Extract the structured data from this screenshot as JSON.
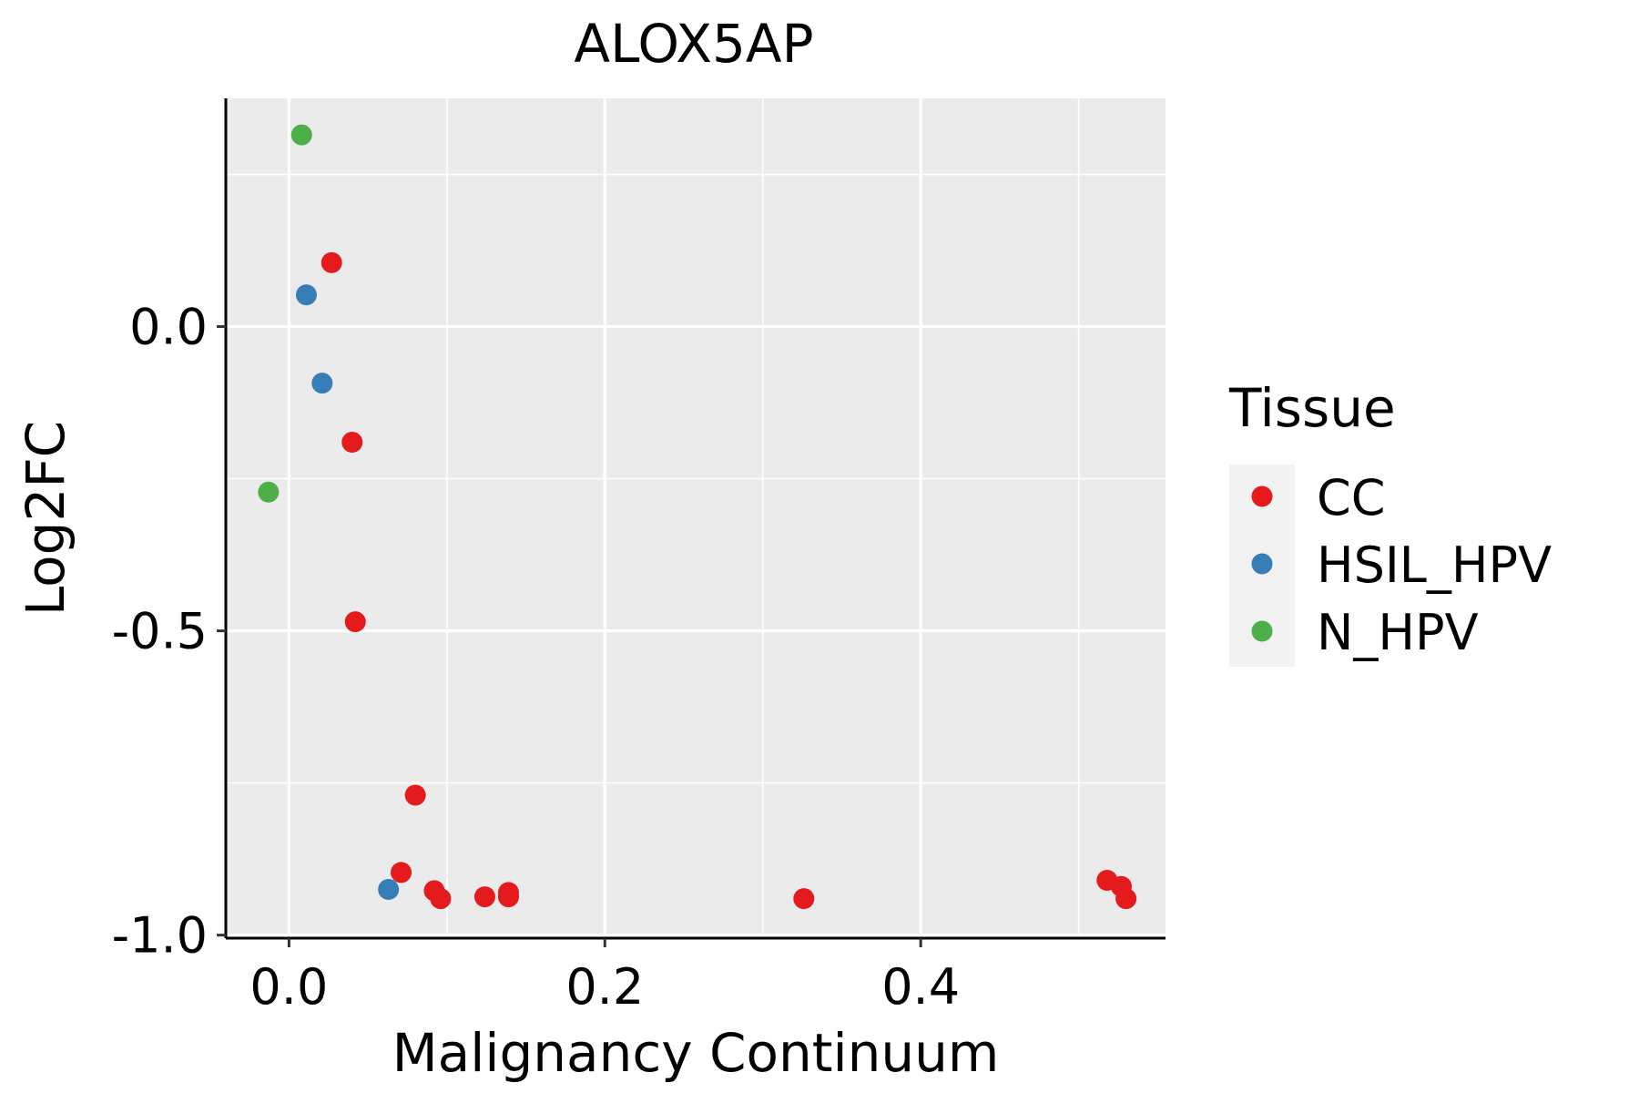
{
  "chart_data": {
    "type": "scatter",
    "title": "ALOX5AP",
    "xlabel": "Malignancy Continuum",
    "ylabel": "Log2FC",
    "xlim": [
      -0.04,
      0.555
    ],
    "ylim": [
      -1.005,
      0.375
    ],
    "x_ticks": [
      0.0,
      0.2,
      0.4
    ],
    "x_tick_labels": [
      "0.0",
      "0.2",
      "0.4"
    ],
    "y_ticks": [
      -1.0,
      -0.5,
      0.0
    ],
    "y_tick_labels": [
      "-1.0",
      "-0.5",
      "0.0"
    ],
    "x_minor_ticks": [
      -0.1,
      0.1,
      0.3,
      0.5
    ],
    "y_minor_ticks": [
      -0.75,
      -0.25,
      0.25
    ],
    "grid": true,
    "legend": {
      "title": "Tissue",
      "position": "right",
      "entries": [
        {
          "label": "CC",
          "color": "#e41a1c"
        },
        {
          "label": "HSIL_HPV",
          "color": "#377eb8"
        },
        {
          "label": "N_HPV",
          "color": "#4daf4a"
        }
      ]
    },
    "series": [
      {
        "name": "CC",
        "color": "#e41a1c",
        "points": [
          {
            "x": 0.027,
            "y": 0.105
          },
          {
            "x": 0.04,
            "y": -0.19
          },
          {
            "x": 0.042,
            "y": -0.485
          },
          {
            "x": 0.08,
            "y": -0.77
          },
          {
            "x": 0.071,
            "y": -0.897
          },
          {
            "x": 0.092,
            "y": -0.927
          },
          {
            "x": 0.096,
            "y": -0.94
          },
          {
            "x": 0.124,
            "y": -0.937
          },
          {
            "x": 0.139,
            "y": -0.93
          },
          {
            "x": 0.139,
            "y": -0.937
          },
          {
            "x": 0.326,
            "y": -0.94
          },
          {
            "x": 0.518,
            "y": -0.91
          },
          {
            "x": 0.527,
            "y": -0.92
          },
          {
            "x": 0.53,
            "y": -0.94
          }
        ]
      },
      {
        "name": "HSIL_HPV",
        "color": "#377eb8",
        "points": [
          {
            "x": 0.011,
            "y": 0.052
          },
          {
            "x": 0.021,
            "y": -0.093
          },
          {
            "x": 0.063,
            "y": -0.925
          }
        ]
      },
      {
        "name": "N_HPV",
        "color": "#4daf4a",
        "points": [
          {
            "x": 0.008,
            "y": 0.315
          },
          {
            "x": -0.013,
            "y": -0.272
          }
        ]
      }
    ]
  }
}
